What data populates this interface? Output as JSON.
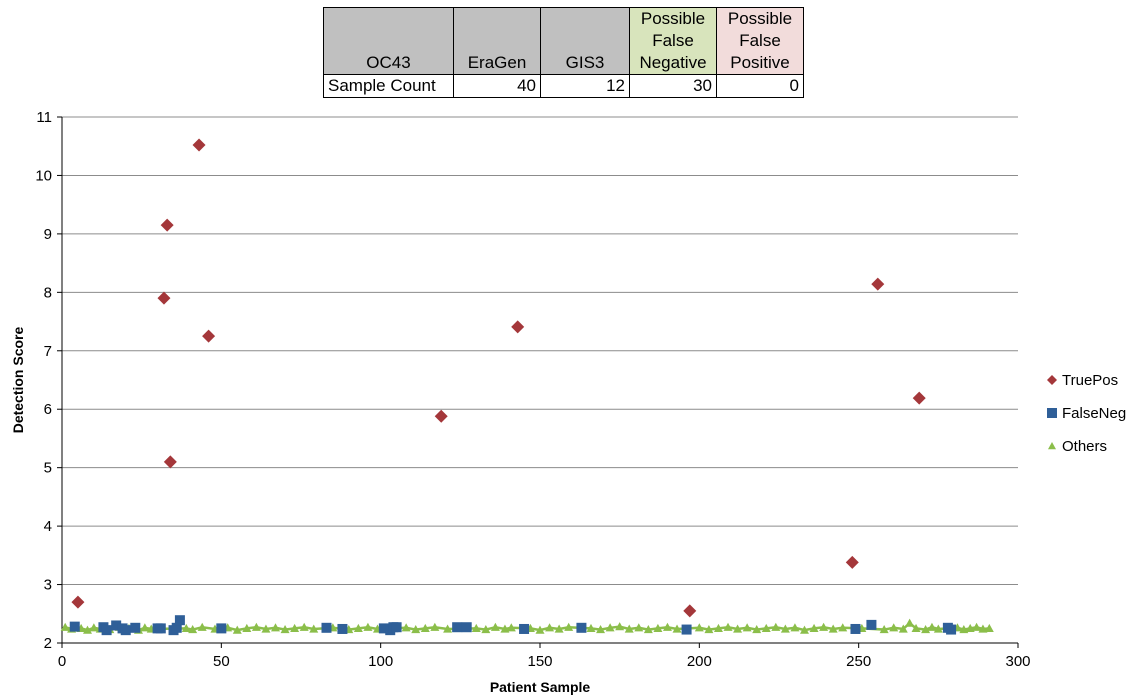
{
  "table": {
    "headers": [
      "OC43",
      "EraGen",
      "GIS3",
      "Possible False Negative",
      "Possible False Positive"
    ],
    "row_label": "Sample Count",
    "counts": [
      "40",
      "12",
      "30",
      "0"
    ]
  },
  "colors": {
    "truepos": "#a4373a",
    "falseneg": "#2f5f98",
    "others": "#8bbe4a",
    "grid": "#8c8c8c",
    "neg_header": "#d8e4bc",
    "pos_header": "#f2dcdb",
    "header": "#c0c0c0"
  },
  "chart_data": {
    "type": "scatter",
    "xlabel": "Patient Sample",
    "ylabel": "Detection Score",
    "xlim": [
      0,
      300
    ],
    "ylim": [
      2,
      11
    ],
    "xticks": [
      0,
      50,
      100,
      150,
      200,
      250,
      300
    ],
    "yticks": [
      2,
      3,
      4,
      5,
      6,
      7,
      8,
      9,
      10,
      11
    ],
    "grid": "horizontal",
    "legend_position": "right",
    "series": [
      {
        "name": "TruePos",
        "marker": "diamond",
        "points": [
          [
            5,
            2.7
          ],
          [
            32,
            7.9
          ],
          [
            33,
            9.15
          ],
          [
            34,
            5.1
          ],
          [
            43,
            10.52
          ],
          [
            46,
            7.25
          ],
          [
            119,
            5.88
          ],
          [
            143,
            7.41
          ],
          [
            197,
            2.55
          ],
          [
            248,
            3.38
          ],
          [
            256,
            8.14
          ],
          [
            269,
            6.19
          ]
        ]
      },
      {
        "name": "FalseNeg",
        "marker": "square",
        "points": [
          [
            4,
            2.28
          ],
          [
            13,
            2.27
          ],
          [
            14,
            2.22
          ],
          [
            17,
            2.3
          ],
          [
            19,
            2.25
          ],
          [
            20,
            2.22
          ],
          [
            23,
            2.26
          ],
          [
            30,
            2.25
          ],
          [
            31,
            2.25
          ],
          [
            35,
            2.22
          ],
          [
            36,
            2.26
          ],
          [
            37,
            2.39
          ],
          [
            50,
            2.25
          ],
          [
            83,
            2.26
          ],
          [
            88,
            2.24
          ],
          [
            101,
            2.25
          ],
          [
            103,
            2.22
          ],
          [
            104,
            2.27
          ],
          [
            105,
            2.27
          ],
          [
            124,
            2.27
          ],
          [
            127,
            2.27
          ],
          [
            145,
            2.24
          ],
          [
            163,
            2.26
          ],
          [
            196,
            2.23
          ],
          [
            249,
            2.24
          ],
          [
            254,
            2.31
          ],
          [
            278,
            2.26
          ],
          [
            279,
            2.23
          ]
        ]
      },
      {
        "name": "Others",
        "marker": "triangle",
        "points": [
          [
            1,
            2.27
          ],
          [
            3,
            2.24
          ],
          [
            6,
            2.25
          ],
          [
            8,
            2.22
          ],
          [
            10,
            2.26
          ],
          [
            12,
            2.24
          ],
          [
            15,
            2.23
          ],
          [
            18,
            2.27
          ],
          [
            21,
            2.25
          ],
          [
            24,
            2.22
          ],
          [
            26,
            2.26
          ],
          [
            28,
            2.24
          ],
          [
            39,
            2.25
          ],
          [
            41,
            2.23
          ],
          [
            44,
            2.27
          ],
          [
            48,
            2.24
          ],
          [
            52,
            2.26
          ],
          [
            55,
            2.22
          ],
          [
            58,
            2.25
          ],
          [
            61,
            2.27
          ],
          [
            64,
            2.24
          ],
          [
            67,
            2.26
          ],
          [
            70,
            2.23
          ],
          [
            73,
            2.25
          ],
          [
            76,
            2.27
          ],
          [
            79,
            2.24
          ],
          [
            85,
            2.26
          ],
          [
            90,
            2.23
          ],
          [
            93,
            2.25
          ],
          [
            96,
            2.27
          ],
          [
            99,
            2.24
          ],
          [
            108,
            2.26
          ],
          [
            111,
            2.23
          ],
          [
            114,
            2.25
          ],
          [
            117,
            2.27
          ],
          [
            121,
            2.24
          ],
          [
            130,
            2.25
          ],
          [
            133,
            2.23
          ],
          [
            136,
            2.27
          ],
          [
            139,
            2.24
          ],
          [
            141,
            2.26
          ],
          [
            147,
            2.25
          ],
          [
            150,
            2.22
          ],
          [
            153,
            2.26
          ],
          [
            156,
            2.24
          ],
          [
            159,
            2.27
          ],
          [
            166,
            2.25
          ],
          [
            169,
            2.23
          ],
          [
            172,
            2.26
          ],
          [
            175,
            2.28
          ],
          [
            178,
            2.24
          ],
          [
            181,
            2.26
          ],
          [
            184,
            2.23
          ],
          [
            187,
            2.25
          ],
          [
            190,
            2.27
          ],
          [
            193,
            2.24
          ],
          [
            200,
            2.26
          ],
          [
            203,
            2.23
          ],
          [
            206,
            2.25
          ],
          [
            209,
            2.27
          ],
          [
            212,
            2.24
          ],
          [
            215,
            2.26
          ],
          [
            218,
            2.23
          ],
          [
            221,
            2.25
          ],
          [
            224,
            2.27
          ],
          [
            227,
            2.24
          ],
          [
            230,
            2.26
          ],
          [
            233,
            2.22
          ],
          [
            236,
            2.25
          ],
          [
            239,
            2.27
          ],
          [
            242,
            2.24
          ],
          [
            245,
            2.26
          ],
          [
            251,
            2.25
          ],
          [
            258,
            2.23
          ],
          [
            261,
            2.26
          ],
          [
            264,
            2.24
          ],
          [
            266,
            2.34
          ],
          [
            268,
            2.25
          ],
          [
            271,
            2.23
          ],
          [
            273,
            2.27
          ],
          [
            275,
            2.24
          ],
          [
            281,
            2.26
          ],
          [
            283,
            2.23
          ],
          [
            285,
            2.25
          ],
          [
            287,
            2.27
          ],
          [
            289,
            2.24
          ],
          [
            291,
            2.25
          ]
        ]
      }
    ]
  }
}
